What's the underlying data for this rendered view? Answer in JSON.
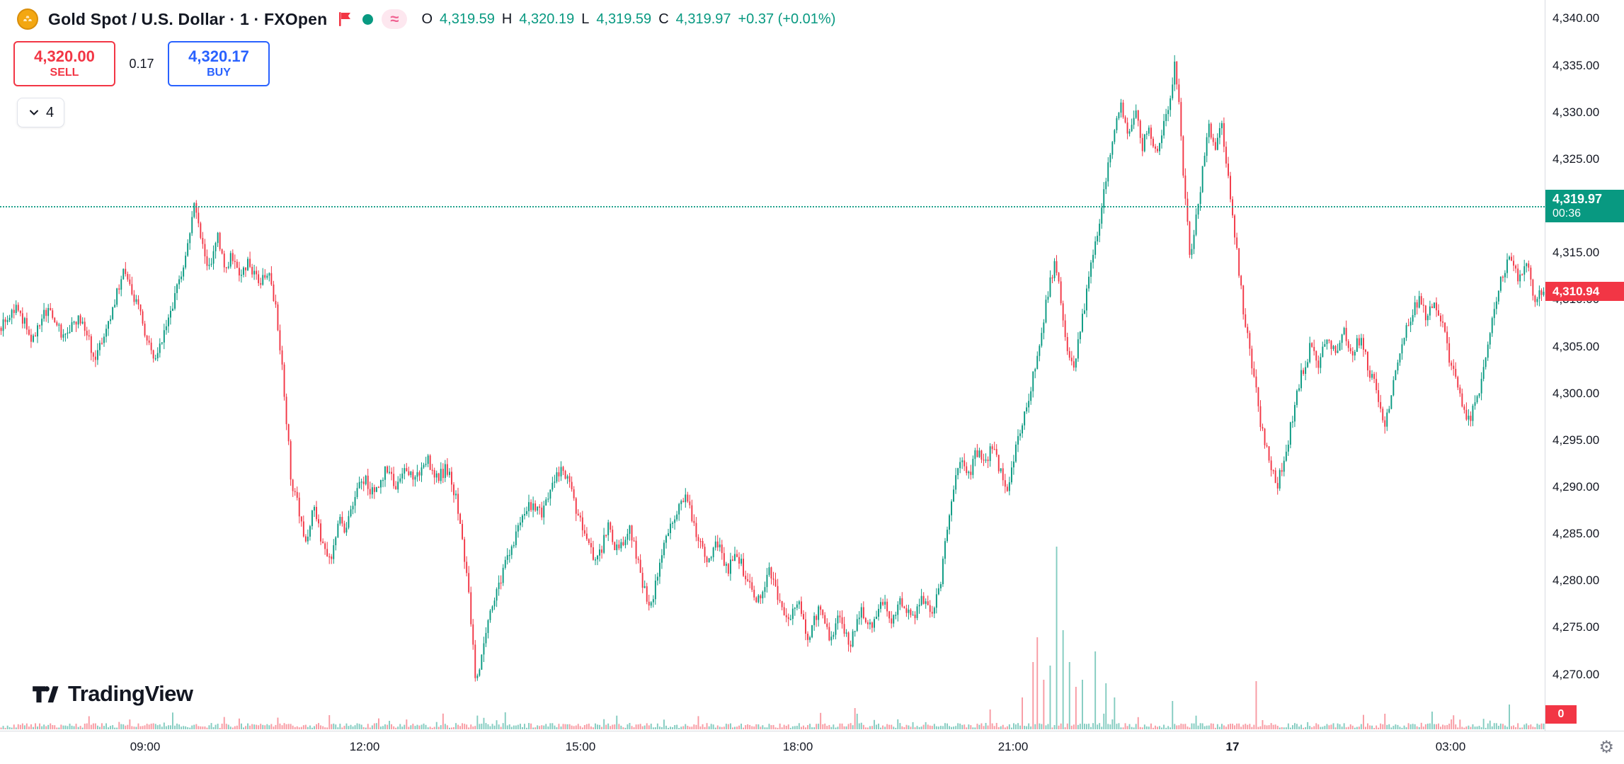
{
  "header": {
    "symbol_title": "Gold Spot / U.S. Dollar · 1 · FXOpen",
    "ohlc": {
      "o_label": "O",
      "o": "4,319.59",
      "h_label": "H",
      "h": "4,320.19",
      "l_label": "L",
      "l": "4,319.59",
      "c_label": "C",
      "c": "4,319.97",
      "change": "+0.37 (+0.01%)"
    },
    "icons": [
      "gold-coin-icon",
      "flag-icon",
      "market-status-dot-icon",
      "approx-icon"
    ]
  },
  "trade_panel": {
    "sell_price": "4,320.00",
    "sell_label": "SELL",
    "spread": "0.17",
    "buy_price": "4,320.17",
    "buy_label": "BUY"
  },
  "toolbar": {
    "collapsed_count": "4"
  },
  "price_scale": {
    "current_badge": {
      "price": "4,319.97",
      "countdown": "00:36",
      "value": 4319.97
    },
    "bid_badge": {
      "text": "4,310.94",
      "value": 4310.94
    },
    "volume_badge": "0"
  },
  "logo": {
    "text": "TradingView"
  },
  "colors": {
    "up": "#089981",
    "down": "#F23645",
    "accent_blue": "#2962FF",
    "text": "#131722",
    "muted": "#787B86"
  },
  "chart_data": {
    "type": "candlestick",
    "title": "Gold Spot / U.S. Dollar",
    "interval": "1",
    "exchange": "FXOpen",
    "open": 4319.59,
    "high": 4320.19,
    "low": 4319.59,
    "close": 4319.97,
    "change": 0.37,
    "change_pct": 0.01,
    "current_price": 4319.97,
    "countdown": "00:36",
    "sell": 4320.0,
    "buy": 4320.17,
    "spread": 0.17,
    "bid": 4310.94,
    "ylim": [
      4264,
      4342
    ],
    "y_ticks": [
      {
        "v": 4340,
        "label": "4,340.00"
      },
      {
        "v": 4335,
        "label": "4,335.00"
      },
      {
        "v": 4330,
        "label": "4,330.00"
      },
      {
        "v": 4325,
        "label": "4,325.00"
      },
      {
        "v": 4315,
        "label": "4,315.00"
      },
      {
        "v": 4310,
        "label": "4,310.00"
      },
      {
        "v": 4305,
        "label": "4,305.00"
      },
      {
        "v": 4300,
        "label": "4,300.00"
      },
      {
        "v": 4295,
        "label": "4,295.00"
      },
      {
        "v": 4290,
        "label": "4,290.00"
      },
      {
        "v": 4285,
        "label": "4,285.00"
      },
      {
        "v": 4280,
        "label": "4,280.00"
      },
      {
        "v": 4275,
        "label": "4,275.00"
      },
      {
        "v": 4270,
        "label": "4,270.00"
      }
    ],
    "x_ticks": [
      {
        "f": 0.094,
        "label": "09:00"
      },
      {
        "f": 0.236,
        "label": "12:00"
      },
      {
        "f": 0.376,
        "label": "15:00"
      },
      {
        "f": 0.5165,
        "label": "18:00"
      },
      {
        "f": 0.6558,
        "label": "21:00"
      },
      {
        "f": 0.7979,
        "label": "17",
        "emph": true
      },
      {
        "f": 0.9391,
        "label": "03:00"
      }
    ],
    "price_path": [
      [
        0,
        4307
      ],
      [
        0.01,
        4309
      ],
      [
        0.02,
        4306
      ],
      [
        0.03,
        4309
      ],
      [
        0.04,
        4306
      ],
      [
        0.05,
        4308
      ],
      [
        0.061,
        4304
      ],
      [
        0.071,
        4308
      ],
      [
        0.079,
        4313
      ],
      [
        0.084,
        4311
      ],
      [
        0.091,
        4308
      ],
      [
        0.1,
        4303
      ],
      [
        0.108,
        4308
      ],
      [
        0.116,
        4312
      ],
      [
        0.121,
        4316
      ],
      [
        0.125,
        4321
      ],
      [
        0.129,
        4317
      ],
      [
        0.134,
        4313
      ],
      [
        0.14,
        4317
      ],
      [
        0.145,
        4313
      ],
      [
        0.149,
        4315
      ],
      [
        0.155,
        4312
      ],
      [
        0.16,
        4314
      ],
      [
        0.167,
        4312
      ],
      [
        0.174,
        4313
      ],
      [
        0.178,
        4309
      ],
      [
        0.182,
        4303
      ],
      [
        0.185,
        4297
      ],
      [
        0.188,
        4291
      ],
      [
        0.194,
        4287
      ],
      [
        0.198,
        4284
      ],
      [
        0.203,
        4288
      ],
      [
        0.208,
        4284
      ],
      [
        0.214,
        4282
      ],
      [
        0.219,
        4287
      ],
      [
        0.223,
        4285
      ],
      [
        0.229,
        4289
      ],
      [
        0.235,
        4291
      ],
      [
        0.242,
        4289
      ],
      [
        0.249,
        4292
      ],
      [
        0.256,
        4290
      ],
      [
        0.262,
        4292
      ],
      [
        0.269,
        4291
      ],
      [
        0.276,
        4293
      ],
      [
        0.282,
        4291
      ],
      [
        0.289,
        4292
      ],
      [
        0.296,
        4288
      ],
      [
        0.301,
        4282
      ],
      [
        0.305,
        4275
      ],
      [
        0.308,
        4269
      ],
      [
        0.311,
        4272
      ],
      [
        0.316,
        4276
      ],
      [
        0.323,
        4280
      ],
      [
        0.33,
        4283
      ],
      [
        0.336,
        4286
      ],
      [
        0.343,
        4288
      ],
      [
        0.35,
        4287
      ],
      [
        0.356,
        4290
      ],
      [
        0.363,
        4292
      ],
      [
        0.369,
        4290
      ],
      [
        0.374,
        4287
      ],
      [
        0.38,
        4284
      ],
      [
        0.387,
        4282
      ],
      [
        0.393,
        4286
      ],
      [
        0.4,
        4283
      ],
      [
        0.407,
        4286
      ],
      [
        0.414,
        4281
      ],
      [
        0.42,
        4277
      ],
      [
        0.425,
        4280
      ],
      [
        0.43,
        4284
      ],
      [
        0.437,
        4287
      ],
      [
        0.444,
        4289
      ],
      [
        0.451,
        4285
      ],
      [
        0.457,
        4282
      ],
      [
        0.464,
        4284
      ],
      [
        0.471,
        4281
      ],
      [
        0.477,
        4283
      ],
      [
        0.484,
        4280
      ],
      [
        0.491,
        4278
      ],
      [
        0.498,
        4281
      ],
      [
        0.504,
        4278
      ],
      [
        0.511,
        4275
      ],
      [
        0.516,
        4278
      ],
      [
        0.523,
        4274
      ],
      [
        0.53,
        4277
      ],
      [
        0.537,
        4274
      ],
      [
        0.543,
        4276
      ],
      [
        0.55,
        4273
      ],
      [
        0.557,
        4277
      ],
      [
        0.564,
        4275
      ],
      [
        0.57,
        4278
      ],
      [
        0.577,
        4276
      ],
      [
        0.584,
        4278
      ],
      [
        0.59,
        4276
      ],
      [
        0.597,
        4278
      ],
      [
        0.604,
        4277
      ],
      [
        0.609,
        4280
      ],
      [
        0.613,
        4285
      ],
      [
        0.617,
        4290
      ],
      [
        0.622,
        4293
      ],
      [
        0.627,
        4291
      ],
      [
        0.632,
        4294
      ],
      [
        0.638,
        4292
      ],
      [
        0.642,
        4295
      ],
      [
        0.647,
        4292
      ],
      [
        0.652,
        4290
      ],
      [
        0.658,
        4294
      ],
      [
        0.662,
        4297
      ],
      [
        0.667,
        4300
      ],
      [
        0.673,
        4305
      ],
      [
        0.678,
        4310
      ],
      [
        0.683,
        4314
      ],
      [
        0.687,
        4310
      ],
      [
        0.691,
        4305
      ],
      [
        0.696,
        4303
      ],
      [
        0.701,
        4308
      ],
      [
        0.706,
        4313
      ],
      [
        0.712,
        4318
      ],
      [
        0.716,
        4323
      ],
      [
        0.721,
        4328
      ],
      [
        0.726,
        4331
      ],
      [
        0.731,
        4327
      ],
      [
        0.736,
        4330
      ],
      [
        0.74,
        4326
      ],
      [
        0.744,
        4329
      ],
      [
        0.749,
        4325
      ],
      [
        0.753,
        4328
      ],
      [
        0.757,
        4331
      ],
      [
        0.761,
        4335
      ],
      [
        0.764,
        4330
      ],
      [
        0.767,
        4322
      ],
      [
        0.771,
        4314
      ],
      [
        0.775,
        4319
      ],
      [
        0.779,
        4324
      ],
      [
        0.783,
        4329
      ],
      [
        0.787,
        4326
      ],
      [
        0.791,
        4329
      ],
      [
        0.795,
        4324
      ],
      [
        0.799,
        4318
      ],
      [
        0.803,
        4312
      ],
      [
        0.807,
        4307
      ],
      [
        0.812,
        4302
      ],
      [
        0.816,
        4297
      ],
      [
        0.822,
        4293
      ],
      [
        0.827,
        4290
      ],
      [
        0.833,
        4294
      ],
      [
        0.838,
        4298
      ],
      [
        0.843,
        4302
      ],
      [
        0.849,
        4305
      ],
      [
        0.854,
        4303
      ],
      [
        0.859,
        4306
      ],
      [
        0.865,
        4304
      ],
      [
        0.87,
        4307
      ],
      [
        0.876,
        4304
      ],
      [
        0.881,
        4306
      ],
      [
        0.886,
        4303
      ],
      [
        0.892,
        4300
      ],
      [
        0.897,
        4297
      ],
      [
        0.903,
        4301
      ],
      [
        0.908,
        4305
      ],
      [
        0.913,
        4308
      ],
      [
        0.919,
        4310
      ],
      [
        0.924,
        4308
      ],
      [
        0.929,
        4310
      ],
      [
        0.935,
        4307
      ],
      [
        0.94,
        4303
      ],
      [
        0.946,
        4300
      ],
      [
        0.951,
        4297
      ],
      [
        0.956,
        4299
      ],
      [
        0.962,
        4303
      ],
      [
        0.967,
        4308
      ],
      [
        0.972,
        4312
      ],
      [
        0.978,
        4315
      ],
      [
        0.983,
        4312
      ],
      [
        0.989,
        4314
      ],
      [
        0.994,
        4310
      ],
      [
        1,
        4311
      ]
    ],
    "volume_spikes": [
      [
        0.553,
        30,
        "down"
      ],
      [
        0.641,
        28,
        "down"
      ],
      [
        0.662,
        45,
        "down"
      ],
      [
        0.669,
        95,
        "down"
      ],
      [
        0.672,
        130,
        "down"
      ],
      [
        0.676,
        70,
        "down"
      ],
      [
        0.68,
        90,
        "up"
      ],
      [
        0.684,
        258,
        "up"
      ],
      [
        0.688,
        140,
        "up"
      ],
      [
        0.692,
        95,
        "up"
      ],
      [
        0.697,
        60,
        "down"
      ],
      [
        0.701,
        70,
        "up"
      ],
      [
        0.709,
        110,
        "up"
      ],
      [
        0.716,
        65,
        "up"
      ],
      [
        0.722,
        45,
        "up"
      ],
      [
        0.76,
        40,
        "up"
      ],
      [
        0.813,
        68,
        "down"
      ],
      [
        0.928,
        25,
        "up"
      ],
      [
        0.978,
        35,
        "up"
      ]
    ],
    "legend_position": "top-left",
    "grid": false
  }
}
